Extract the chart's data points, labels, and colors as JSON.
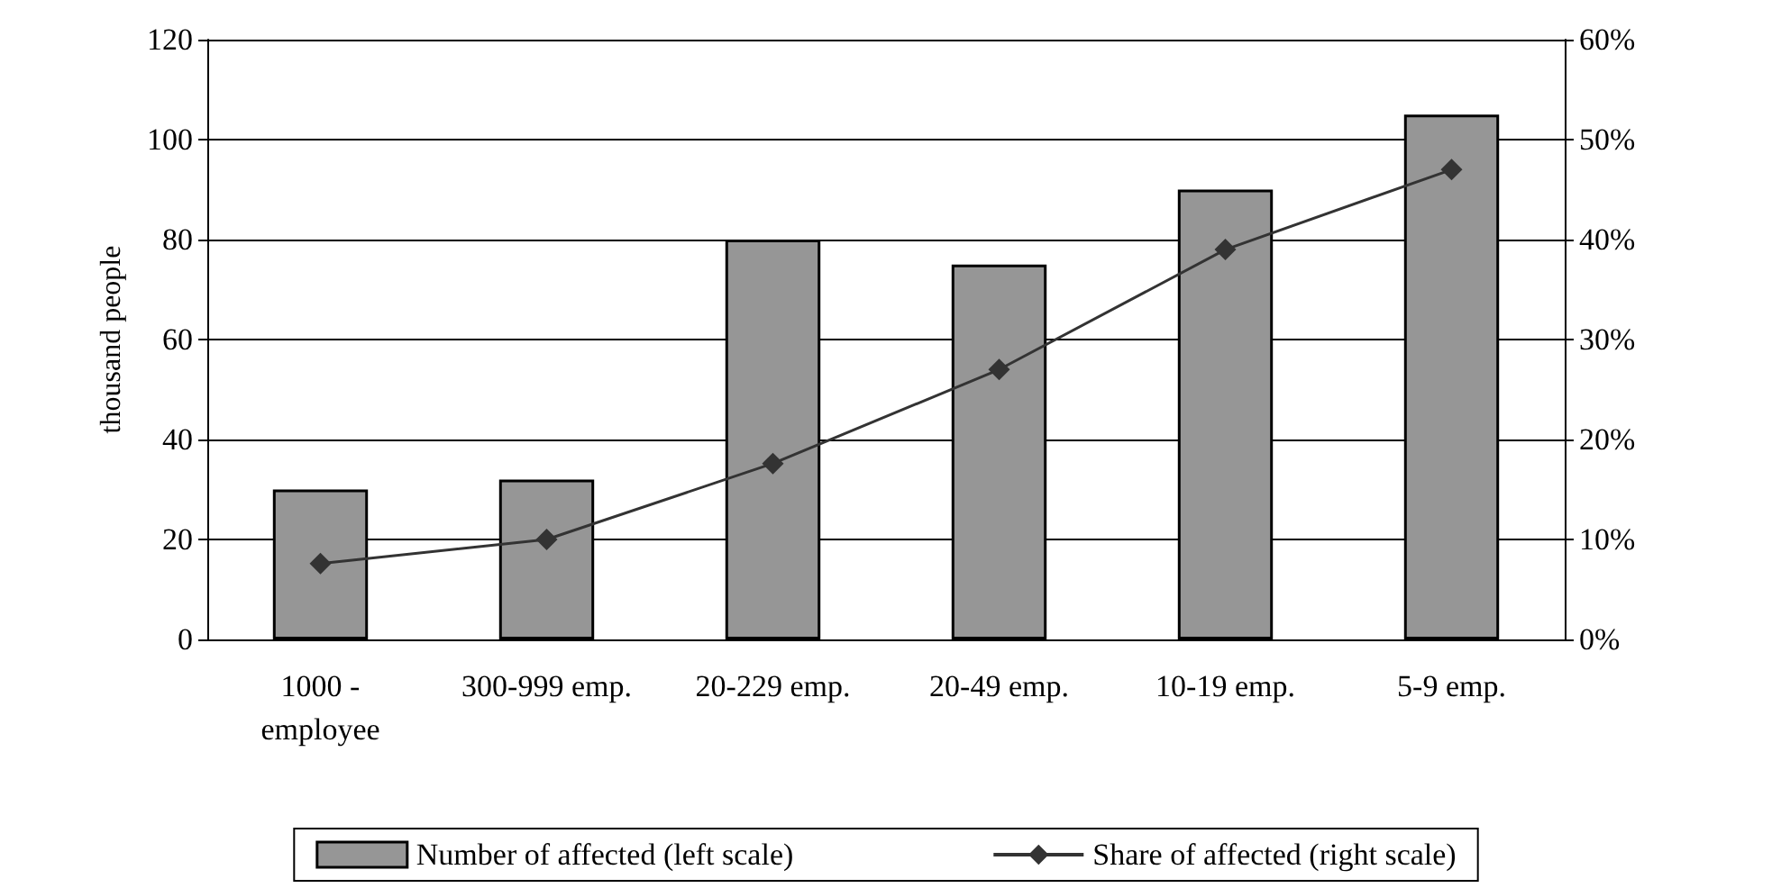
{
  "chart_data": {
    "type": "bar",
    "ylabel": "thousand people",
    "categories": [
      "1000 -\nemployee",
      "300-999 emp.",
      "20-229 emp.",
      "20-49 emp.",
      "10-19 emp.",
      "5-9 emp."
    ],
    "series": [
      {
        "name": "Number of affected (left scale)",
        "color": "#969696",
        "values": [
          30,
          32,
          80,
          75,
          90,
          105
        ]
      },
      {
        "name": "Share of affected (right scale)",
        "type": "line",
        "axis": "y2",
        "color": "#333333",
        "marker": "diamond",
        "values": [
          7.6,
          10,
          17.6,
          27,
          39,
          47
        ]
      }
    ],
    "ylim": [
      0,
      120
    ],
    "yticks": [
      0,
      20,
      40,
      60,
      80,
      100,
      120
    ],
    "y2lim": [
      0,
      60
    ],
    "y2ticks": [
      {
        "value": 0,
        "label": "0%"
      },
      {
        "value": 10,
        "label": "10%"
      },
      {
        "value": 20,
        "label": "20%"
      },
      {
        "value": 30,
        "label": "30%"
      },
      {
        "value": 40,
        "label": "40%"
      },
      {
        "value": 50,
        "label": "50%"
      },
      {
        "value": 60,
        "label": "60%"
      }
    ],
    "grid": "y",
    "legend": "bottom"
  }
}
